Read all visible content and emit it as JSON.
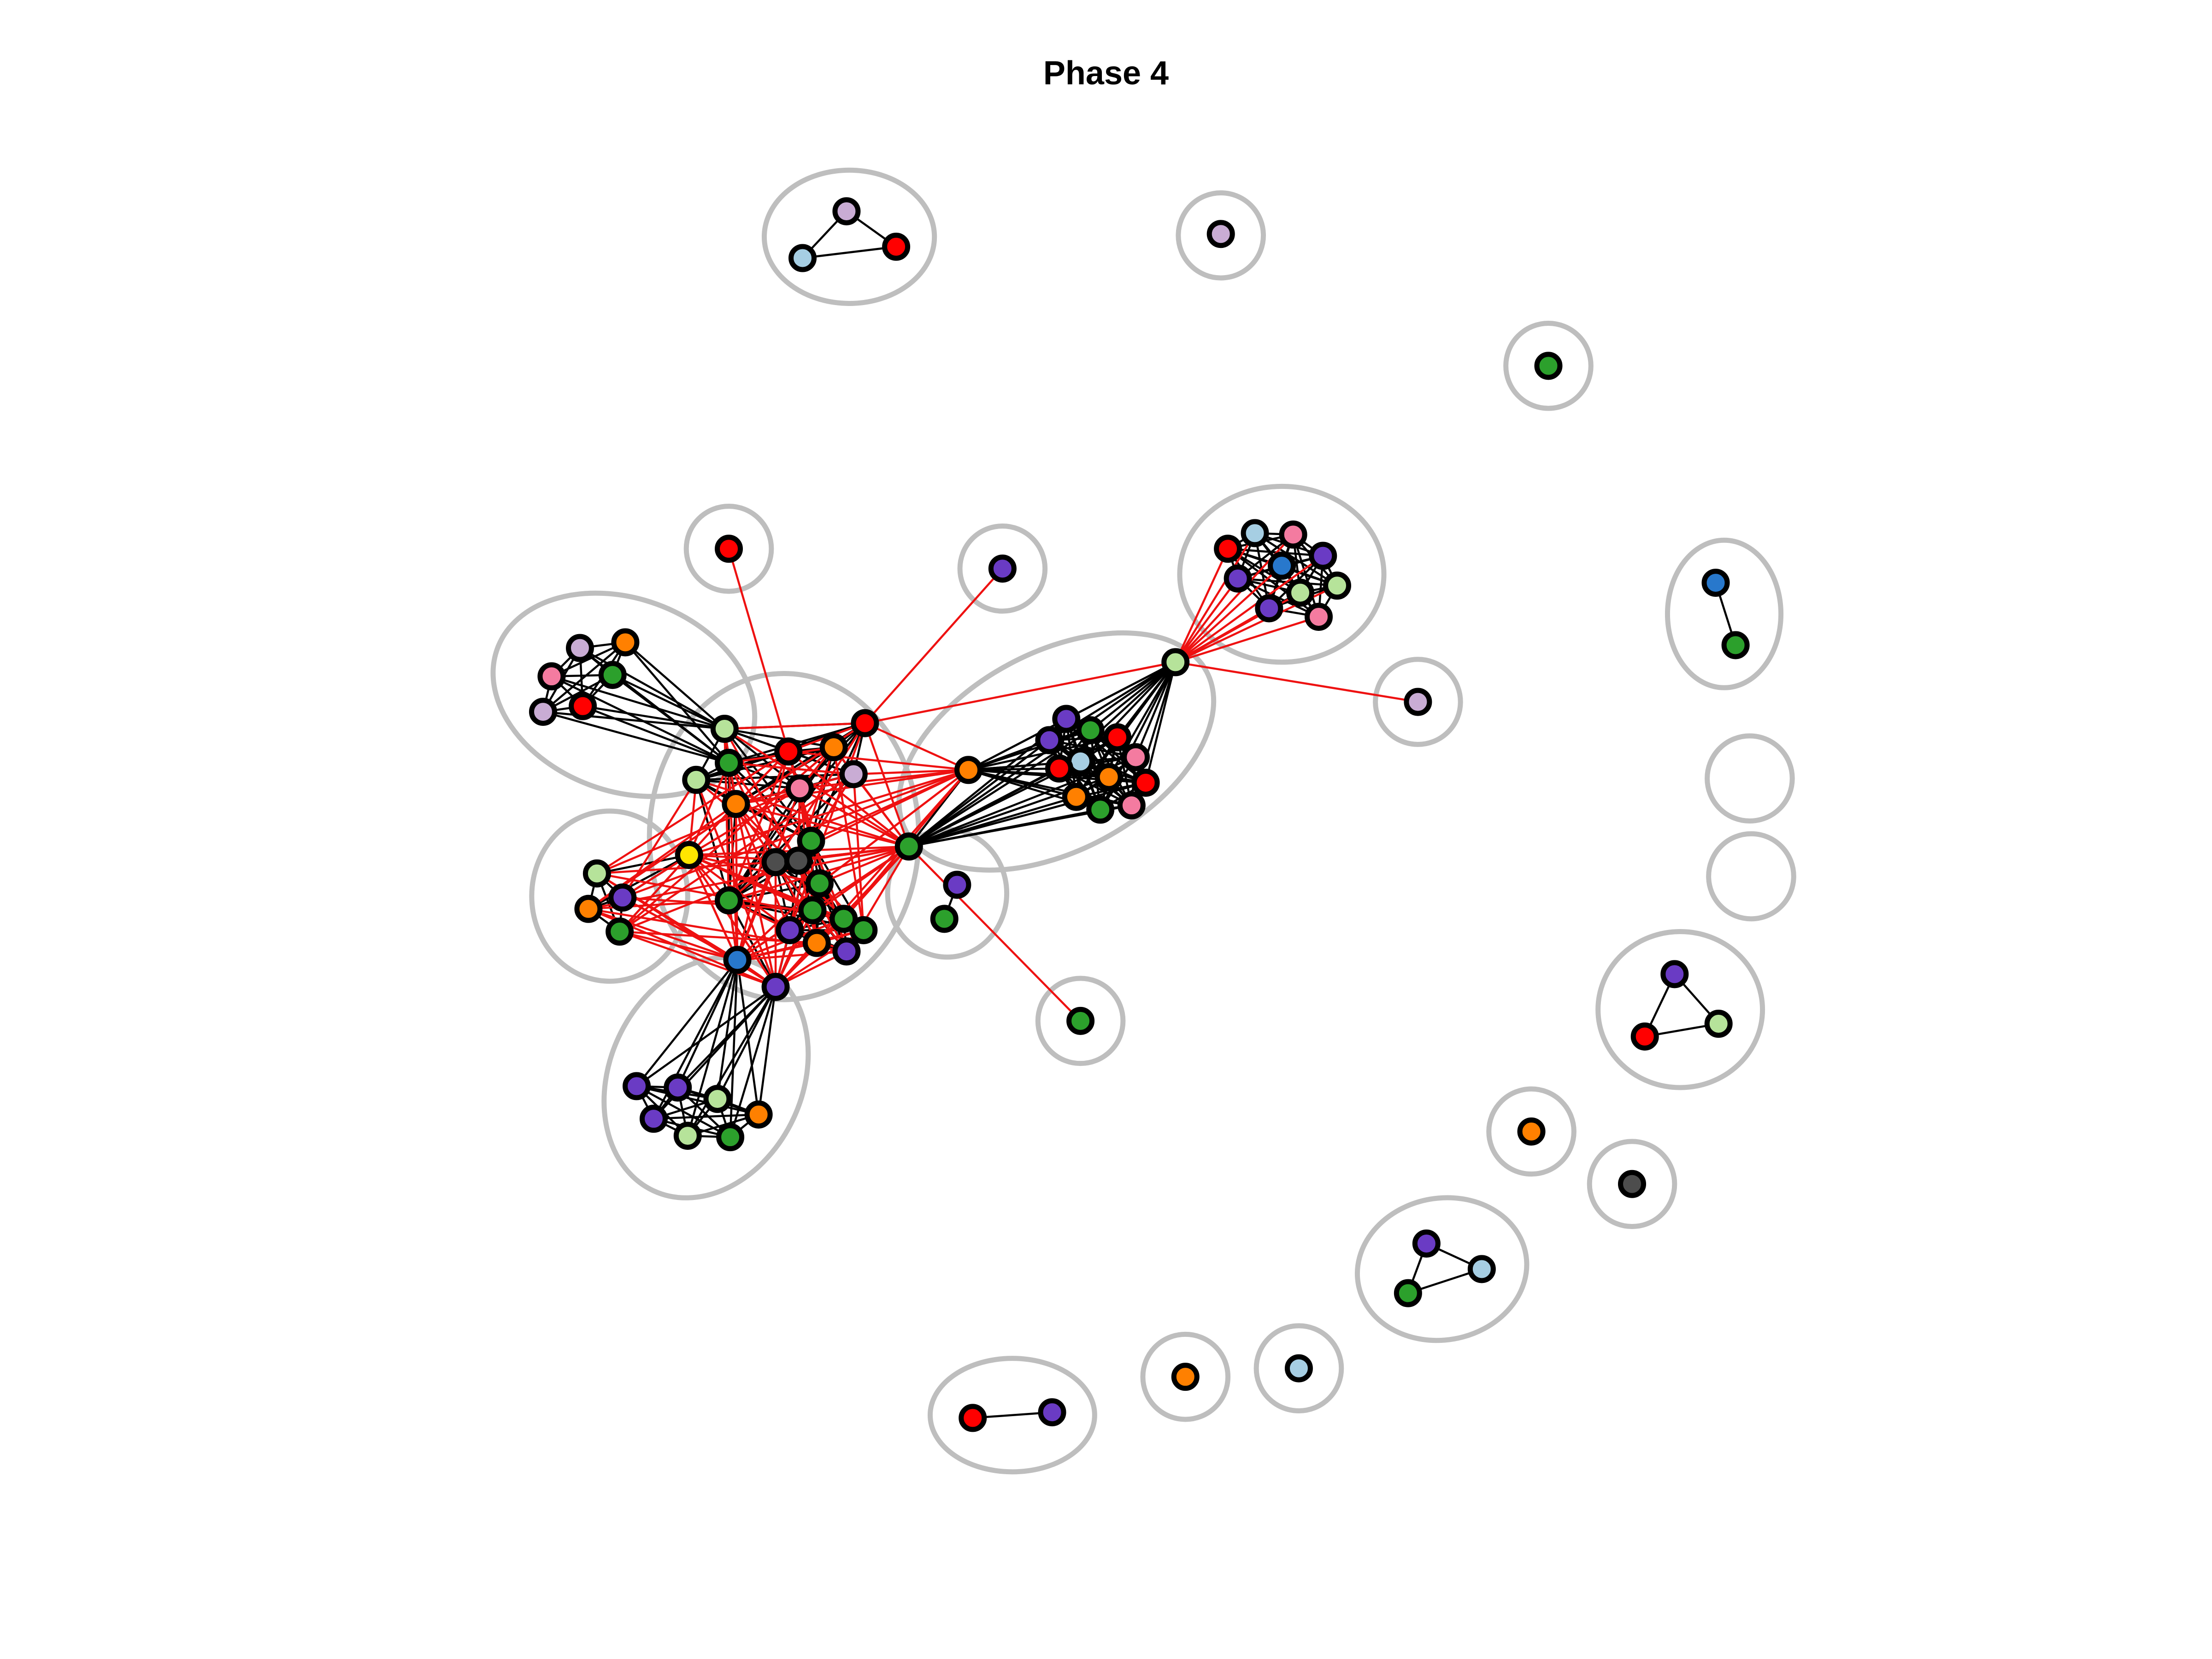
{
  "title": "Phase 4",
  "colors": {
    "red": "#ff0000",
    "orange": "#ff8000",
    "green": "#2ca02c",
    "lightgreen": "#b6e39a",
    "purple": "#6a3bc4",
    "pink": "#f47ba0",
    "lilac": "#c9acd4",
    "lightblue": "#a6cee3",
    "blue": "#2878cc",
    "yellow": "#ffe600",
    "gray": "#4d4d4d",
    "hull": "#bebebe",
    "edge_within": "#000000",
    "edge_between": "#ee1111"
  }
}
